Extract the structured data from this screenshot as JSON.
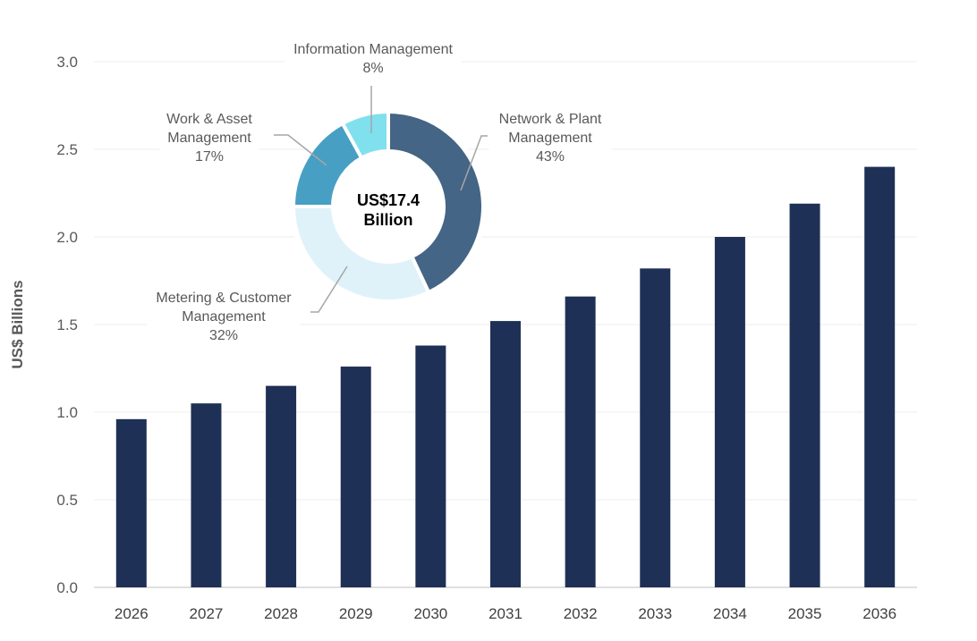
{
  "chart_data": [
    {
      "type": "bar",
      "ylabel": "US$ Billions",
      "xlabel": "",
      "ylim": [
        0,
        3.0
      ],
      "yticks": [
        "0.0",
        "0.5",
        "1.0",
        "1.5",
        "2.0",
        "2.5",
        "3.0"
      ],
      "grid": true,
      "categories": [
        "2026",
        "2027",
        "2028",
        "2029",
        "2030",
        "2031",
        "2032",
        "2033",
        "2034",
        "2035",
        "2036"
      ],
      "values": [
        0.96,
        1.05,
        1.15,
        1.26,
        1.38,
        1.52,
        1.66,
        1.82,
        2.0,
        2.19,
        2.4
      ],
      "color": "#1f3056"
    },
    {
      "type": "pie",
      "variant": "donut",
      "center_label": [
        "US$17.4",
        "Billion"
      ],
      "slices": [
        {
          "label": [
            "Network & Plant",
            "Management"
          ],
          "pct": "43%",
          "value": 43,
          "color": "#446585"
        },
        {
          "label": [
            "Metering & Customer",
            "Management"
          ],
          "pct": "32%",
          "value": 32,
          "color": "#dff2f9"
        },
        {
          "label": [
            "Work & Asset",
            "Management"
          ],
          "pct": "17%",
          "value": 17,
          "color": "#479fc4"
        },
        {
          "label": [
            "Information Management"
          ],
          "pct": "8%",
          "value": 8,
          "color": "#80e0ee"
        }
      ]
    }
  ]
}
